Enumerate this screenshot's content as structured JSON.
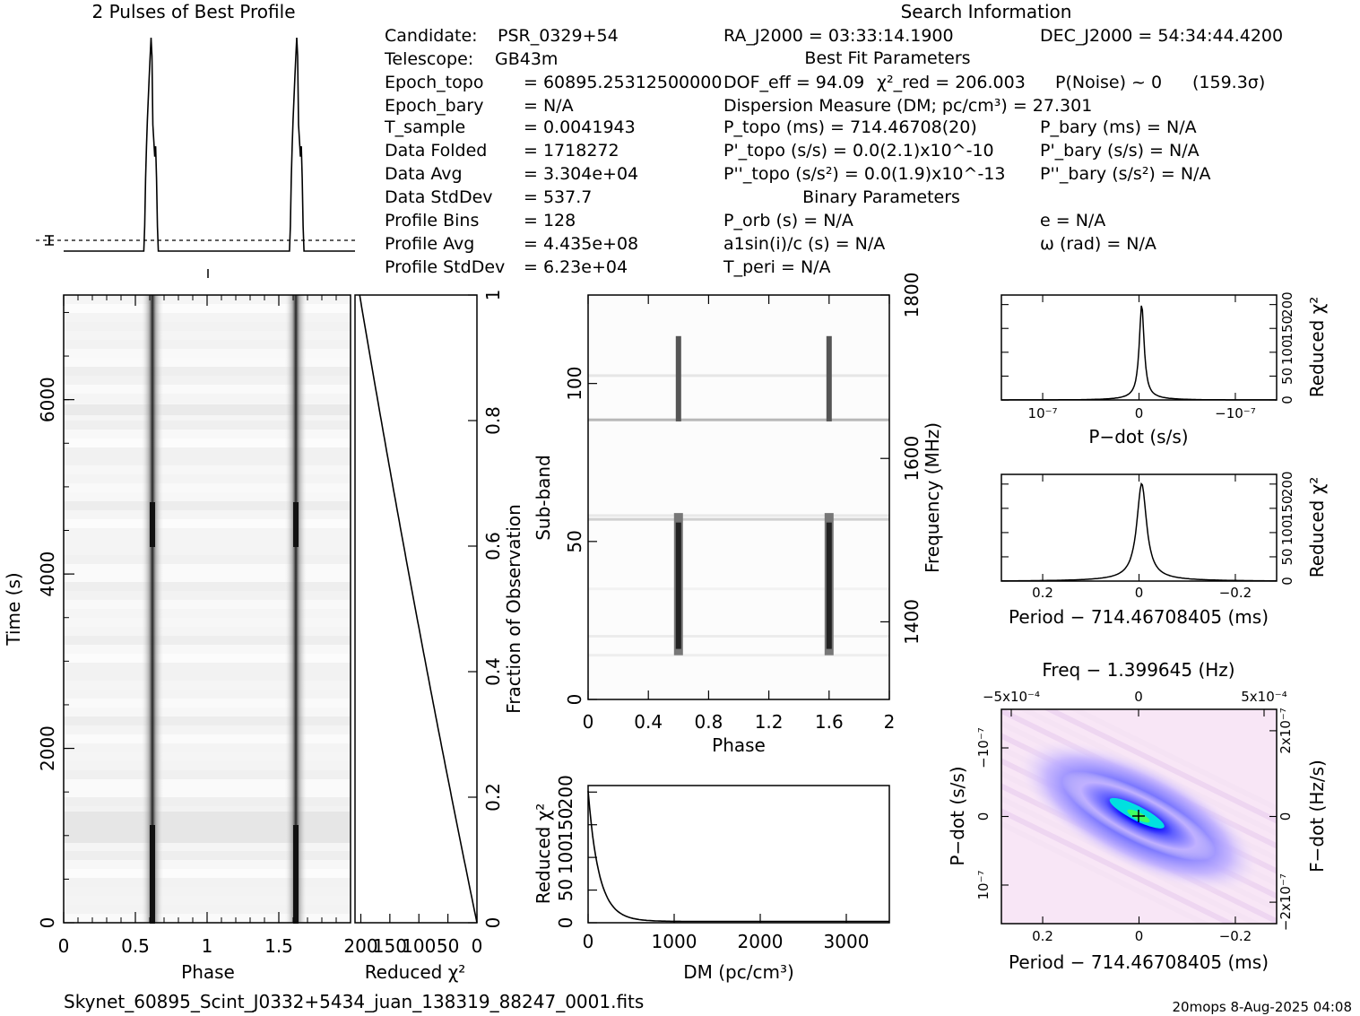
{
  "header": {
    "profile_title": "2 Pulses of Best Profile",
    "search_title": "Search Information",
    "best_fit_title": "Best Fit Parameters",
    "binary_title": "Binary Parameters"
  },
  "info_left": [
    {
      "label": "Candidate:",
      "value": "PSR_0329+54"
    },
    {
      "label": "Telescope:",
      "value": "GB43m"
    },
    {
      "label": "Epoch_topo",
      "value": "= 60895.25312500000"
    },
    {
      "label": "Epoch_bary",
      "value": "= N/A"
    },
    {
      "label": "T_sample",
      "value": "=  0.0041943"
    },
    {
      "label": "Data Folded",
      "value": "=  1718272"
    },
    {
      "label": "Data Avg",
      "value": "=  3.304e+04"
    },
    {
      "label": "Data StdDev",
      "value": "=  537.7"
    },
    {
      "label": "Profile Bins",
      "value": "=  128"
    },
    {
      "label": "Profile Avg",
      "value": "=  4.435e+08"
    },
    {
      "label": "Profile StdDev",
      "value": "=  6.23e+04"
    }
  ],
  "info_mid": {
    "ra": "RA_J2000 = 03:33:14.1900",
    "dof": "DOF_eff = 94.09",
    "chi2": "χ²_red = 206.003",
    "pnoise": "P(Noise) ~ 0",
    "sigma": "(159.3σ)",
    "dm": "Dispersion Measure (DM; pc/cm³) = 27.301",
    "ptopo": "P_topo (ms) =  714.46708(20)",
    "pdtopo": "P'_topo (s/s) = 0.0(2.1)x10^-10",
    "pddtopo": "P''_topo (s/s²) = 0.0(1.9)x10^-13",
    "porb": "P_orb (s) = N/A",
    "a1": "a1sin(i)/c (s) = N/A",
    "tperi": "T_peri = N/A"
  },
  "info_right": {
    "dec": "DEC_J2000 = 54:34:44.4200",
    "pbary": "P_bary (ms) = N/A",
    "pdbary": "P'_bary (s/s) = N/A",
    "pddbary": "P''_bary (s/s²) = N/A",
    "e": "e = N/A",
    "omega": "ω (rad) = N/A"
  },
  "footer": {
    "filename": "Skynet_60895_Scint_J0332+5434_juan_138319_88247_0001.fits",
    "stamp": "20mops  8-Aug-2025 04:08"
  },
  "chart_data": [
    {
      "id": "profile",
      "type": "line",
      "title": "2 Pulses of Best Profile",
      "xlim": [
        0,
        2
      ],
      "peaks": [
        0.6,
        1.6
      ],
      "color": "#000000"
    },
    {
      "id": "time-phase",
      "type": "heatmap",
      "xlabel": "Phase",
      "ylabel": "Time (s)",
      "xlim": [
        0,
        2
      ],
      "ylim": [
        0,
        7200
      ],
      "x_ticks": [
        "0",
        "0.5",
        "1",
        "1.5"
      ],
      "y_ticks": [
        "0",
        "2000",
        "4000",
        "6000"
      ],
      "pulse_phases": [
        0.6,
        1.6
      ]
    },
    {
      "id": "chi2-vs-time",
      "type": "line",
      "xlabel": "Reduced χ²",
      "ylabel": "Fraction of Observation",
      "x_ticks": [
        "200",
        "150",
        "100",
        "50",
        "0"
      ],
      "y_ticks": [
        "0",
        "0.2",
        "0.4",
        "0.6",
        "0.8",
        "1"
      ],
      "xlim": [
        210,
        0
      ],
      "ylim": [
        0,
        1
      ]
    },
    {
      "id": "subband-phase",
      "type": "heatmap",
      "xlabel": "Phase",
      "ylabel": "Sub-band",
      "ylabel2": "Frequency (MHz)",
      "xlim": [
        0,
        2
      ],
      "ylim": [
        0,
        128
      ],
      "x_ticks": [
        "0",
        "0.4",
        "0.8",
        "1.2",
        "1.6",
        "2"
      ],
      "y_ticks": [
        "0",
        "50",
        "100"
      ],
      "y2_ticks": [
        "1400",
        "1600",
        "1800"
      ]
    },
    {
      "id": "dm-chi2",
      "type": "line",
      "xlabel": "DM (pc/cm³)",
      "ylabel": "Reduced χ²",
      "x_ticks": [
        "0",
        "1000",
        "2000",
        "3000"
      ],
      "y_ticks": [
        "0",
        "50",
        "100",
        "150",
        "200"
      ],
      "xlim": [
        0,
        3500
      ],
      "ylim": [
        0,
        210
      ]
    },
    {
      "id": "pdot-chi2",
      "type": "line",
      "xlabel": "P−dot (s/s)",
      "ylabel": "Reduced χ²",
      "x_ticks": [
        "10⁻⁷",
        "0",
        "−10⁻⁷"
      ],
      "y_ticks": [
        "0",
        "50",
        "100",
        "150",
        "200"
      ]
    },
    {
      "id": "period-chi2",
      "type": "line",
      "xlabel": "Period − 714.46708405 (ms)",
      "ylabel": "Reduced χ²",
      "x_ticks": [
        "0.2",
        "0",
        "−0.2"
      ],
      "y_ticks": [
        "0",
        "50",
        "100",
        "150",
        "200"
      ]
    },
    {
      "id": "period-pdot",
      "type": "heatmap",
      "title": "Freq − 1.399645 (Hz)",
      "xlabel": "Period − 714.46708405 (ms)",
      "ylabel": "P−dot (s/s)",
      "ylabel2": "F−dot (Hz/s)",
      "x_ticks": [
        "0.2",
        "0",
        "−0.2"
      ],
      "top_ticks": [
        "−5x10⁻⁴",
        "0",
        "5x10⁻⁴"
      ],
      "y_ticks": [
        "10⁻⁷",
        "0",
        "−10⁻⁷"
      ],
      "y2_ticks": [
        "−2x10⁻⁷",
        "0",
        "2x10⁻⁷"
      ],
      "colors": [
        "#ffffff",
        "#f0d0f0",
        "#8080ff",
        "#0000ff",
        "#00ffff",
        "#00ff00",
        "#ffff00"
      ]
    }
  ]
}
